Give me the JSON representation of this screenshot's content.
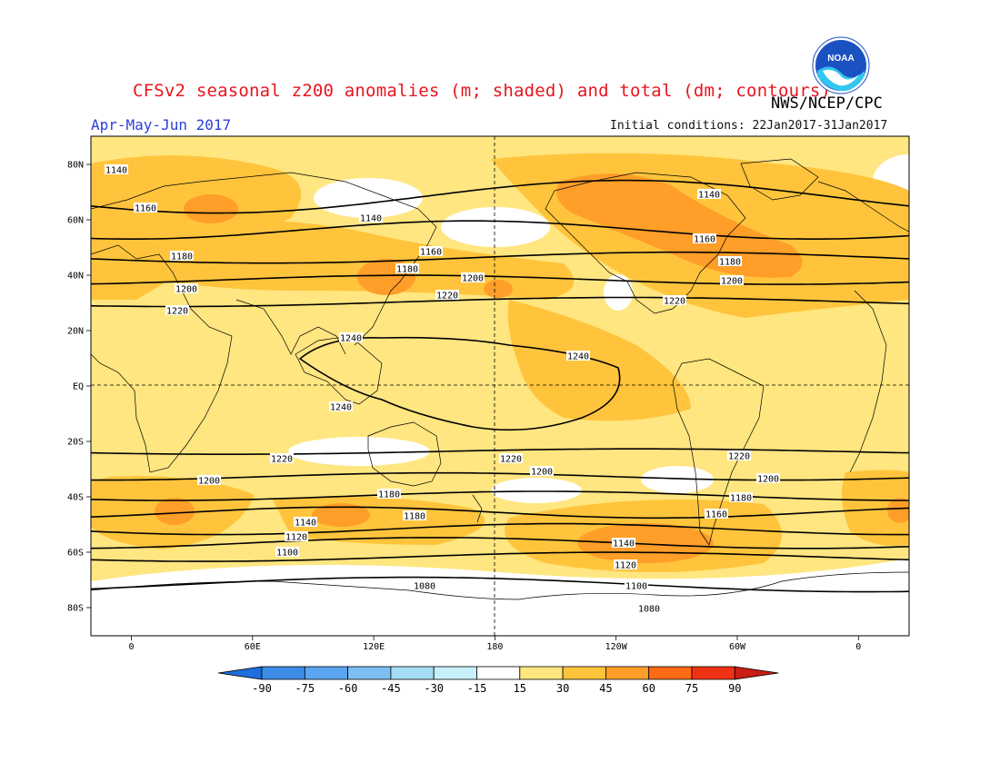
{
  "header": {
    "title": "CFSv2 seasonal z200 anomalies (m; shaded) and total (dm; contours)",
    "org": "NWS/NCEP/CPC",
    "period": "Apr-May-Jun 2017",
    "initial_conditions": "Initial conditions: 22Jan2017-31Jan2017",
    "logo_text": "NOAA"
  },
  "axes": {
    "lat_labels": [
      "80N",
      "60N",
      "40N",
      "20N",
      "EQ",
      "20S",
      "40S",
      "60S",
      "80S"
    ],
    "lon_labels": [
      "0",
      "60E",
      "120E",
      "180",
      "120W",
      "60W",
      "0"
    ]
  },
  "colorbar": {
    "labels": [
      "-90",
      "-75",
      "-60",
      "-45",
      "-30",
      "-15",
      "15",
      "30",
      "45",
      "60",
      "75",
      "90"
    ],
    "colors": [
      "#1e6fdc",
      "#3c8ce6",
      "#5aa5ef",
      "#7dbef3",
      "#a5dcf5",
      "#c8f0fa",
      "#ffffff",
      "#ffe680",
      "#ffc43c",
      "#ff9e28",
      "#ff6a14",
      "#f03214",
      "#c81e14"
    ]
  },
  "contours": [
    {
      "label": "1140",
      "lat": 68
    },
    {
      "label": "1160",
      "lat": 56
    },
    {
      "label": "1180",
      "lat": 46
    },
    {
      "label": "1200",
      "lat": 38
    },
    {
      "label": "1220",
      "lat": 30
    },
    {
      "label": "1240",
      "lat": 6
    },
    {
      "label": "1220",
      "lat": -24
    },
    {
      "label": "1200",
      "lat": -33
    },
    {
      "label": "1180",
      "lat": -40
    },
    {
      "label": "1160",
      "lat": -46
    },
    {
      "label": "1140",
      "lat": -52
    },
    {
      "label": "1120",
      "lat": -57
    },
    {
      "label": "1100",
      "lat": -62
    },
    {
      "label": "1080",
      "lat": -72
    }
  ],
  "contour_labels": [
    {
      "text": "1140"
    },
    {
      "text": "1140"
    },
    {
      "text": "1140"
    },
    {
      "text": "1160"
    },
    {
      "text": "1160"
    },
    {
      "text": "1160"
    },
    {
      "text": "1180"
    },
    {
      "text": "1180"
    },
    {
      "text": "1180"
    },
    {
      "text": "1200"
    },
    {
      "text": "1200"
    },
    {
      "text": "1200"
    },
    {
      "text": "1220"
    },
    {
      "text": "1220"
    },
    {
      "text": "1220"
    },
    {
      "text": "1240"
    },
    {
      "text": "1240"
    },
    {
      "text": "1240"
    },
    {
      "text": "1220"
    },
    {
      "text": "1220"
    },
    {
      "text": "1220"
    },
    {
      "text": "1200"
    },
    {
      "text": "1200"
    },
    {
      "text": "1200"
    },
    {
      "text": "1180"
    },
    {
      "text": "1180"
    },
    {
      "text": "1180"
    },
    {
      "text": "1160"
    },
    {
      "text": "1140"
    },
    {
      "text": "1140"
    },
    {
      "text": "1120"
    },
    {
      "text": "1120"
    },
    {
      "text": "1100"
    },
    {
      "text": "1100"
    },
    {
      "text": "1080"
    },
    {
      "text": "1080"
    }
  ]
}
